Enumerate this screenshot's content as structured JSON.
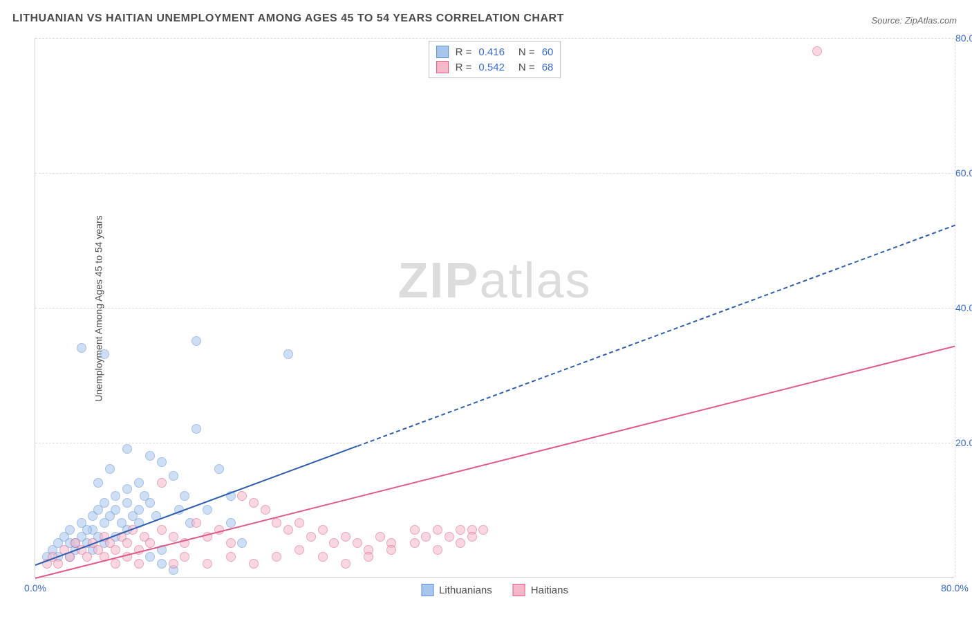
{
  "title": "LITHUANIAN VS HAITIAN UNEMPLOYMENT AMONG AGES 45 TO 54 YEARS CORRELATION CHART",
  "source": "Source: ZipAtlas.com",
  "ylabel": "Unemployment Among Ages 45 to 54 years",
  "watermark_bold": "ZIP",
  "watermark_light": "atlas",
  "chart": {
    "type": "scatter",
    "xlim": [
      0,
      80
    ],
    "ylim": [
      0,
      80
    ],
    "xtick_labels": [
      "0.0%",
      "80.0%"
    ],
    "xtick_positions": [
      0,
      80
    ],
    "ytick_labels": [
      "20.0%",
      "40.0%",
      "60.0%",
      "80.0%"
    ],
    "ytick_positions": [
      20,
      40,
      60,
      80
    ],
    "tick_color": "#3869d4",
    "grid_color": "#dcdcdc",
    "axis_color": "#cfcfcf",
    "background_color": "#ffffff",
    "series": [
      {
        "name": "Lithuanians",
        "fill": "#a7c6ed",
        "stroke": "#5a8fd6",
        "fill_opacity": 0.55,
        "marker_size": 14,
        "R": "0.416",
        "N": "60",
        "trend": {
          "slope": 0.63,
          "intercept": 2.0,
          "color": "#2e5db0",
          "solid_until_x": 28,
          "width": 2
        },
        "points": [
          [
            1,
            3
          ],
          [
            1.5,
            4
          ],
          [
            2,
            5
          ],
          [
            2,
            3
          ],
          [
            2.5,
            6
          ],
          [
            3,
            5
          ],
          [
            3,
            7
          ],
          [
            3.5,
            4
          ],
          [
            4,
            8
          ],
          [
            4,
            6
          ],
          [
            4.5,
            5
          ],
          [
            5,
            9
          ],
          [
            5,
            7
          ],
          [
            5.5,
            10
          ],
          [
            6,
            8
          ],
          [
            6,
            11
          ],
          [
            6.5,
            9
          ],
          [
            7,
            12
          ],
          [
            7,
            10
          ],
          [
            7.5,
            8
          ],
          [
            8,
            13
          ],
          [
            8,
            11
          ],
          [
            8.5,
            9
          ],
          [
            9,
            14
          ],
          [
            9,
            10
          ],
          [
            9.5,
            12
          ],
          [
            10,
            11
          ],
          [
            10,
            18
          ],
          [
            10.5,
            9
          ],
          [
            6,
            33
          ],
          [
            11,
            17
          ],
          [
            12,
            15
          ],
          [
            12.5,
            10
          ],
          [
            13,
            12
          ],
          [
            13.5,
            8
          ],
          [
            14,
            35
          ],
          [
            14,
            22
          ],
          [
            15,
            10
          ],
          [
            16,
            16
          ],
          [
            17,
            12
          ],
          [
            5.5,
            14
          ],
          [
            6.5,
            16
          ],
          [
            8,
            19
          ],
          [
            4,
            34
          ],
          [
            11,
            2
          ],
          [
            12,
            1
          ],
          [
            17,
            8
          ],
          [
            18,
            5
          ],
          [
            10,
            3
          ],
          [
            11,
            4
          ],
          [
            22,
            33
          ],
          [
            3,
            3
          ],
          [
            3.5,
            5
          ],
          [
            4.5,
            7
          ],
          [
            5,
            4
          ],
          [
            5.5,
            6
          ],
          [
            6,
            5
          ],
          [
            7,
            6
          ],
          [
            8,
            7
          ],
          [
            9,
            8
          ]
        ]
      },
      {
        "name": "Haitians",
        "fill": "#f4b8c8",
        "stroke": "#e05a87",
        "fill_opacity": 0.55,
        "marker_size": 14,
        "R": "0.542",
        "N": "68",
        "trend": {
          "slope": 0.43,
          "intercept": 0.0,
          "color": "#e05a87",
          "solid_until_x": 80,
          "width": 2
        },
        "points": [
          [
            1,
            2
          ],
          [
            1.5,
            3
          ],
          [
            2,
            2
          ],
          [
            2.5,
            4
          ],
          [
            3,
            3
          ],
          [
            3.5,
            5
          ],
          [
            4,
            4
          ],
          [
            4.5,
            3
          ],
          [
            5,
            5
          ],
          [
            5.5,
            4
          ],
          [
            6,
            6
          ],
          [
            6.5,
            5
          ],
          [
            7,
            4
          ],
          [
            7.5,
            6
          ],
          [
            8,
            5
          ],
          [
            8.5,
            7
          ],
          [
            9,
            4
          ],
          [
            9.5,
            6
          ],
          [
            10,
            5
          ],
          [
            11,
            7
          ],
          [
            12,
            6
          ],
          [
            13,
            5
          ],
          [
            14,
            8
          ],
          [
            15,
            6
          ],
          [
            16,
            7
          ],
          [
            17,
            5
          ],
          [
            18,
            12
          ],
          [
            19,
            11
          ],
          [
            20,
            10
          ],
          [
            21,
            8
          ],
          [
            22,
            7
          ],
          [
            23,
            8
          ],
          [
            24,
            6
          ],
          [
            25,
            7
          ],
          [
            26,
            5
          ],
          [
            27,
            6
          ],
          [
            28,
            5
          ],
          [
            29,
            4
          ],
          [
            30,
            6
          ],
          [
            31,
            5
          ],
          [
            33,
            7
          ],
          [
            34,
            6
          ],
          [
            35,
            7
          ],
          [
            36,
            6
          ],
          [
            37,
            5
          ],
          [
            38,
            7
          ],
          [
            11,
            14
          ],
          [
            12,
            2
          ],
          [
            13,
            3
          ],
          [
            15,
            2
          ],
          [
            17,
            3
          ],
          [
            19,
            2
          ],
          [
            21,
            3
          ],
          [
            23,
            4
          ],
          [
            25,
            3
          ],
          [
            27,
            2
          ],
          [
            29,
            3
          ],
          [
            31,
            4
          ],
          [
            33,
            5
          ],
          [
            35,
            4
          ],
          [
            37,
            7
          ],
          [
            38,
            6
          ],
          [
            39,
            7
          ],
          [
            68,
            78
          ],
          [
            6,
            3
          ],
          [
            7,
            2
          ],
          [
            8,
            3
          ],
          [
            9,
            2
          ]
        ]
      }
    ]
  },
  "stat_legend": {
    "r_label": "R  =",
    "n_label": "N  ="
  },
  "series_legend_label_0": "Lithuanians",
  "series_legend_label_1": "Haitians"
}
